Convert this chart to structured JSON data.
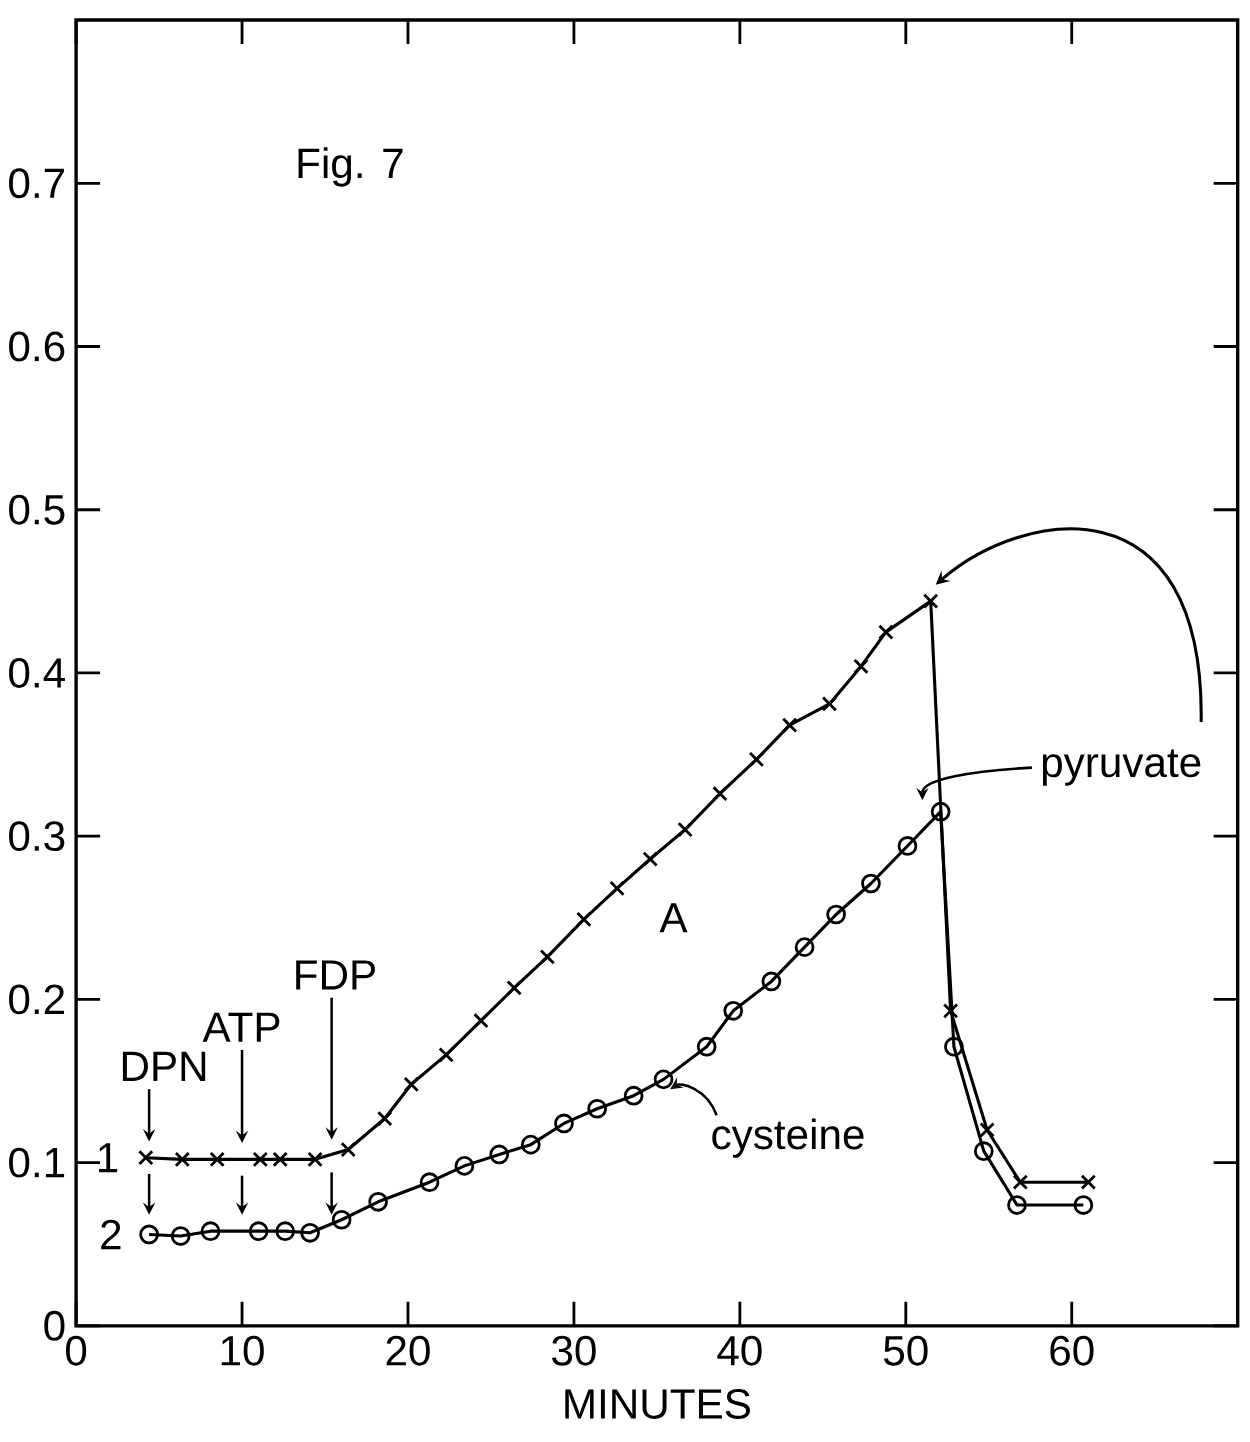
{
  "chart_data": {
    "type": "line",
    "xlabel": "MINUTES",
    "xlim": [
      0,
      70
    ],
    "ylim": [
      0,
      0.8
    ],
    "xticks": [
      0,
      10,
      20,
      30,
      40,
      50,
      60
    ],
    "yticks": [
      0,
      0.1,
      0.2,
      0.3,
      0.4,
      0.5,
      0.6,
      0.7
    ],
    "grid": false,
    "legend": "left",
    "line_style": "solid",
    "series": [
      {
        "name": "1",
        "color": "#000000",
        "marker": "cross",
        "x": [
          4.2,
          6.4,
          8.5,
          11.1,
          12.3,
          14.4,
          16.4,
          18.6,
          20.2,
          22.3,
          24.4,
          26.4,
          28.4,
          30.6,
          32.6,
          34.6,
          36.7,
          38.8,
          41.0,
          43.0,
          45.4,
          47.3,
          48.8,
          51.5,
          52.7,
          54.9,
          56.9,
          61.0
        ],
        "values": [
          0.103,
          0.102,
          0.102,
          0.102,
          0.102,
          0.102,
          0.108,
          0.127,
          0.148,
          0.166,
          0.187,
          0.207,
          0.226,
          0.249,
          0.268,
          0.286,
          0.304,
          0.326,
          0.347,
          0.368,
          0.381,
          0.404,
          0.425,
          0.444,
          0.193,
          0.12,
          0.088,
          0.088
        ]
      },
      {
        "name": "2",
        "color": "#000000",
        "marker": "circle",
        "x": [
          4.4,
          6.3,
          8.1,
          11.0,
          12.6,
          14.1,
          16.0,
          18.2,
          21.3,
          23.4,
          25.5,
          27.4,
          29.4,
          31.4,
          33.6,
          35.4,
          38.0,
          39.6,
          41.9,
          43.9,
          45.8,
          47.9,
          50.1,
          52.1,
          52.9,
          54.7,
          56.7,
          60.7
        ],
        "values": [
          0.056,
          0.055,
          0.058,
          0.058,
          0.058,
          0.057,
          0.065,
          0.076,
          0.088,
          0.098,
          0.105,
          0.111,
          0.124,
          0.133,
          0.141,
          0.151,
          0.171,
          0.193,
          0.211,
          0.232,
          0.252,
          0.271,
          0.294,
          0.315,
          0.171,
          0.107,
          0.074,
          0.074
        ]
      }
    ],
    "annotations": [
      "Fig. 7",
      "A",
      {
        "text": "DPN",
        "x": 4.4,
        "y": 0.103
      },
      {
        "text": "ATP",
        "x": 10.0,
        "y": 0.102
      },
      "FDP",
      "pyruvate",
      {
        "text": "cysteine",
        "x": 35.4,
        "y": 0.151
      }
    ]
  }
}
